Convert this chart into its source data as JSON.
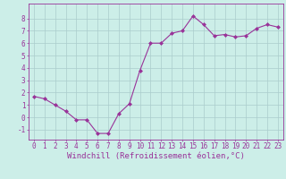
{
  "x": [
    0,
    1,
    2,
    3,
    4,
    5,
    6,
    7,
    8,
    9,
    10,
    11,
    12,
    13,
    14,
    15,
    16,
    17,
    18,
    19,
    20,
    21,
    22,
    23
  ],
  "y": [
    1.7,
    1.5,
    1.0,
    0.5,
    -0.2,
    -0.2,
    -1.3,
    -1.3,
    0.3,
    1.1,
    3.8,
    6.0,
    6.0,
    6.8,
    7.0,
    8.2,
    7.5,
    6.6,
    6.7,
    6.5,
    6.6,
    7.2,
    7.5,
    7.3
  ],
  "line_color": "#993399",
  "marker_color": "#993399",
  "bg_color": "#cceee8",
  "grid_color": "#aacccc",
  "axis_color": "#993399",
  "xlabel": "Windchill (Refroidissement éolien,°C)",
  "xlim": [
    -0.5,
    23.5
  ],
  "ylim": [
    -1.8,
    9.2
  ],
  "yticks": [
    -1,
    0,
    1,
    2,
    3,
    4,
    5,
    6,
    7,
    8
  ],
  "xticks": [
    0,
    1,
    2,
    3,
    4,
    5,
    6,
    7,
    8,
    9,
    10,
    11,
    12,
    13,
    14,
    15,
    16,
    17,
    18,
    19,
    20,
    21,
    22,
    23
  ],
  "font_size": 5.5,
  "label_font_size": 6.5
}
